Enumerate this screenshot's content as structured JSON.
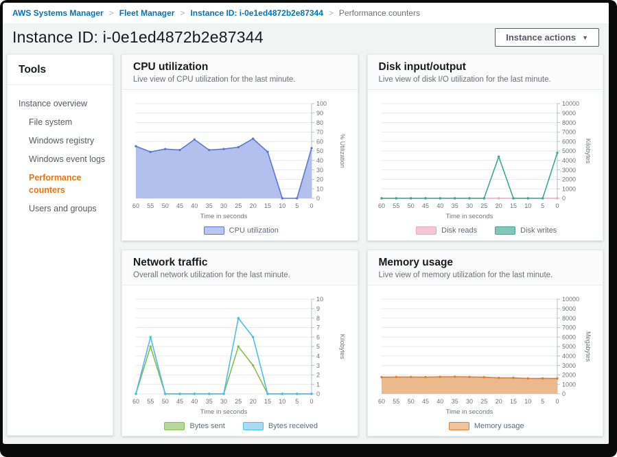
{
  "breadcrumb": {
    "separator": ">",
    "items": [
      {
        "label": "AWS Systems Manager",
        "type": "link"
      },
      {
        "label": "Fleet Manager",
        "type": "link"
      },
      {
        "label": "Instance ID: i-0e1ed4872b2e87344",
        "type": "link"
      },
      {
        "label": "Performance counters",
        "type": "current"
      }
    ]
  },
  "header": {
    "title": "Instance ID: i-0e1ed4872b2e87344",
    "actions_label": "Instance actions",
    "caret": "▼"
  },
  "sidebar": {
    "title": "Tools",
    "items": [
      {
        "label": "Instance overview",
        "indent": 0,
        "active": false
      },
      {
        "label": "File system",
        "indent": 1,
        "active": false
      },
      {
        "label": "Windows registry",
        "indent": 1,
        "active": false
      },
      {
        "label": "Windows event logs",
        "indent": 1,
        "active": false
      },
      {
        "label": "Performance counters",
        "indent": 1,
        "active": true
      },
      {
        "label": "Users and groups",
        "indent": 1,
        "active": false
      }
    ]
  },
  "colors": {
    "link_blue": "#0073bb",
    "active_orange": "#ec7211",
    "page_bg": "#f2f3f3",
    "gridline": "#e7e8ea",
    "axis_line": "#b7bfc8",
    "tick_text": "#6f7378"
  },
  "chart_data": [
    {
      "type": "area",
      "title": "CPU utilization",
      "subtitle": "Live view of CPU utilization for the last minute.",
      "categories": [
        "60",
        "55",
        "50",
        "45",
        "40",
        "35",
        "30",
        "25",
        "20",
        "15",
        "10",
        "5",
        "0"
      ],
      "xlabel": "Time in seconds",
      "ylabel": "% Utilization",
      "ylim": [
        0,
        100
      ],
      "ystep": 10,
      "grid": true,
      "legend_position": "bottom",
      "series": [
        {
          "name": "CPU utilization",
          "values": [
            55,
            49,
            52,
            51,
            62,
            51,
            52,
            54,
            63,
            49,
            0,
            0,
            53
          ],
          "color": "#5b76d8",
          "fill": "#b3c0ee",
          "legend_fill": "#bcc7f1"
        }
      ]
    },
    {
      "type": "line",
      "title": "Disk input/output",
      "subtitle": "Live view of disk I/O utilization for the last minute.",
      "categories": [
        "60",
        "55",
        "50",
        "45",
        "40",
        "35",
        "30",
        "25",
        "20",
        "15",
        "10",
        "5",
        "0"
      ],
      "xlabel": "Time in seconds",
      "ylabel": "Kilobytes",
      "ylim": [
        0,
        10000
      ],
      "ystep": 1000,
      "grid": true,
      "legend_position": "bottom",
      "series": [
        {
          "name": "Disk reads",
          "values": [
            0,
            0,
            0,
            0,
            0,
            0,
            0,
            0,
            0,
            0,
            0,
            0,
            0
          ],
          "color": "#eca7bf",
          "fill": null,
          "legend_fill": "#f5c6d6"
        },
        {
          "name": "Disk writes",
          "values": [
            0,
            0,
            0,
            0,
            0,
            0,
            0,
            0,
            4400,
            0,
            0,
            0,
            4800
          ],
          "color": "#3ba693",
          "fill": null,
          "legend_fill": "#82c7b9"
        }
      ]
    },
    {
      "type": "line",
      "title": "Network traffic",
      "subtitle": "Overall network utilization for the last minute.",
      "categories": [
        "60",
        "55",
        "50",
        "45",
        "40",
        "35",
        "30",
        "25",
        "20",
        "15",
        "10",
        "5",
        "0"
      ],
      "xlabel": "Time in seconds",
      "ylabel": "Kilobytes",
      "ylim": [
        0,
        10
      ],
      "ystep": 1,
      "grid": true,
      "legend_position": "bottom",
      "series": [
        {
          "name": "Bytes sent",
          "values": [
            0,
            5,
            0,
            0,
            0,
            0,
            0,
            5,
            3,
            0,
            0,
            0,
            0
          ],
          "color": "#85bd4f",
          "fill": null,
          "legend_fill": "#b5d89a"
        },
        {
          "name": "Bytes received",
          "values": [
            0,
            6,
            0,
            0,
            0,
            0,
            0,
            8,
            6,
            0,
            0,
            0,
            0
          ],
          "color": "#4cbde8",
          "fill": null,
          "legend_fill": "#a5dcf2"
        }
      ]
    },
    {
      "type": "area",
      "title": "Memory usage",
      "subtitle": "Live view of memory utilization for the last minute.",
      "categories": [
        "60",
        "55",
        "50",
        "45",
        "40",
        "35",
        "30",
        "25",
        "20",
        "15",
        "10",
        "5",
        "0"
      ],
      "xlabel": "Time in seconds",
      "ylabel": "Megabytes",
      "ylim": [
        0,
        10000
      ],
      "ystep": 1000,
      "grid": true,
      "legend_position": "bottom",
      "series": [
        {
          "name": "Memory usage",
          "values": [
            1760,
            1780,
            1780,
            1770,
            1800,
            1810,
            1790,
            1760,
            1690,
            1690,
            1630,
            1640,
            1630
          ],
          "color": "#d9812e",
          "fill": "#ecb98d",
          "legend_fill": "#eec3a0"
        }
      ]
    }
  ]
}
